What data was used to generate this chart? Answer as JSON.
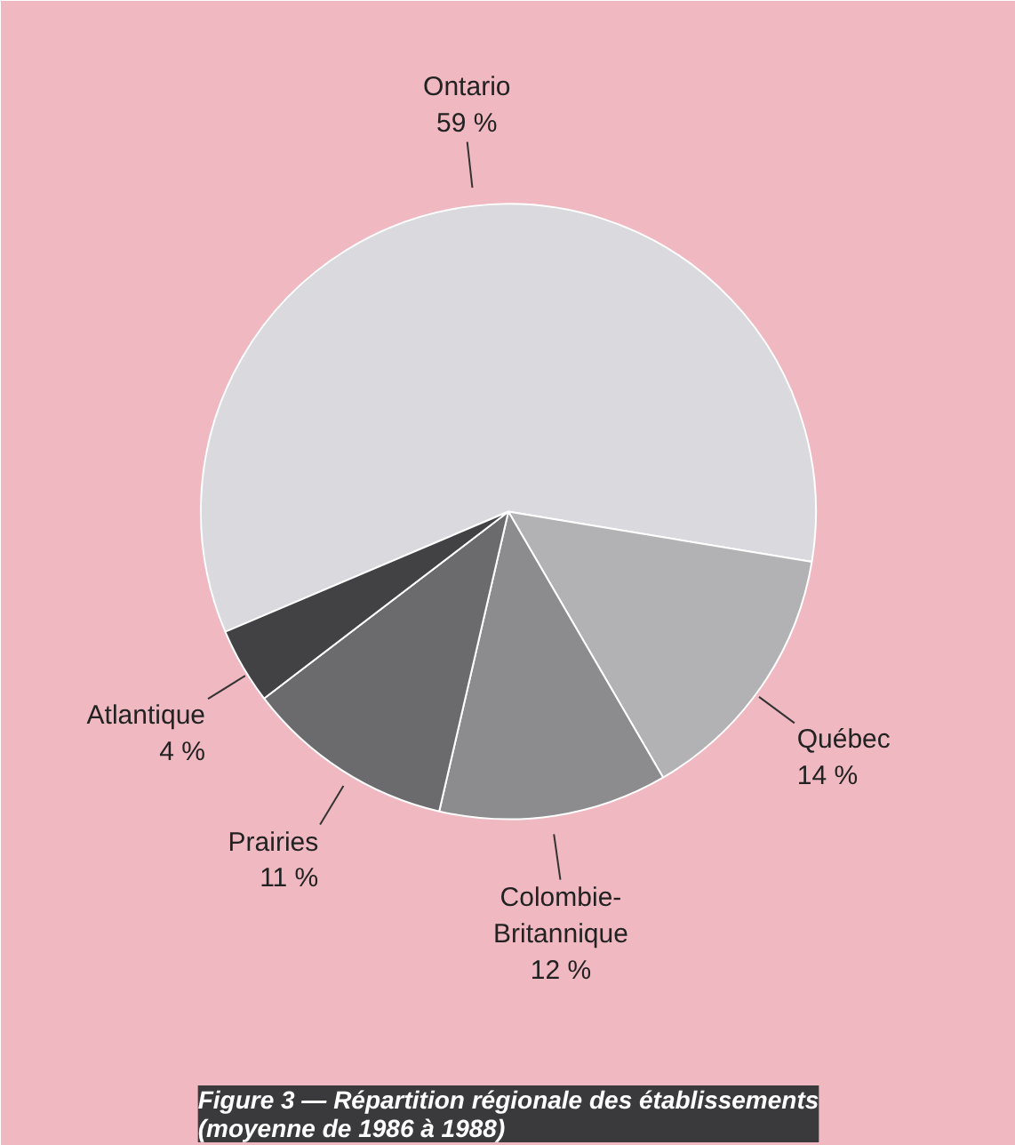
{
  "chart_data": {
    "type": "pie",
    "title": "Figure 3 — Répartition régionale des établissements\n(moyenne de 1986 à 1988)",
    "categories": [
      "Ontario",
      "Québec",
      "Colombie-\nBritannique",
      "Prairies",
      "Atlantique"
    ],
    "values": [
      59,
      14,
      12,
      11,
      4
    ],
    "value_labels": [
      "59 %",
      "14 %",
      "12 %",
      "11 %",
      "4 %"
    ],
    "colors": [
      "#d9d9de",
      "#b2b2b4",
      "#8c8c8e",
      "#6b6b6d",
      "#424244"
    ]
  }
}
